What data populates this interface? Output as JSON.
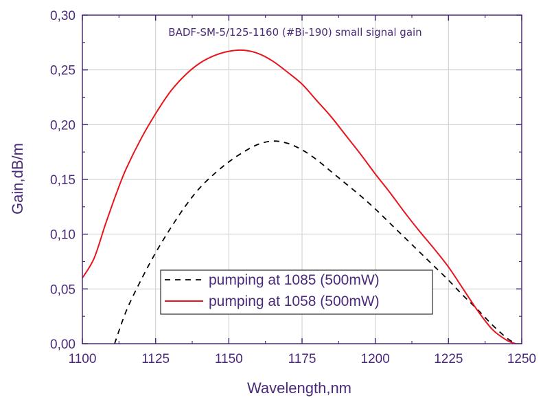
{
  "chart_data": {
    "type": "line",
    "title": "BADF-SM-5/125-1160  (#Bi-190) small signal gain",
    "xlabel": "Wavelength,nm",
    "ylabel": "Gain,dB/m",
    "xlim": [
      1100,
      1250
    ],
    "ylim": [
      0,
      0.3
    ],
    "x_ticks": [
      "1100",
      "1125",
      "1150",
      "1175",
      "1200",
      "1225",
      "1250"
    ],
    "y_ticks": [
      "0,00",
      "0,05",
      "0,10",
      "0,15",
      "0,20",
      "0,25",
      "0,30"
    ],
    "grid": true,
    "legend_position": "lower-left",
    "colors": {
      "axis": "#4b2a7a",
      "grid": "#cccccc"
    },
    "series": [
      {
        "name": "pumping at 1085 (500mW)",
        "color": "#000000",
        "dash": "dashed",
        "points": [
          [
            1111,
            0.0
          ],
          [
            1115,
            0.03
          ],
          [
            1120,
            0.058
          ],
          [
            1125,
            0.083
          ],
          [
            1130,
            0.105
          ],
          [
            1135,
            0.125
          ],
          [
            1140,
            0.142
          ],
          [
            1145,
            0.155
          ],
          [
            1150,
            0.166
          ],
          [
            1155,
            0.175
          ],
          [
            1160,
            0.182
          ],
          [
            1165,
            0.185
          ],
          [
            1170,
            0.183
          ],
          [
            1175,
            0.177
          ],
          [
            1180,
            0.168
          ],
          [
            1185,
            0.157
          ],
          [
            1190,
            0.146
          ],
          [
            1195,
            0.135
          ],
          [
            1200,
            0.123
          ],
          [
            1205,
            0.11
          ],
          [
            1210,
            0.097
          ],
          [
            1215,
            0.084
          ],
          [
            1220,
            0.071
          ],
          [
            1225,
            0.058
          ],
          [
            1230,
            0.044
          ],
          [
            1235,
            0.031
          ],
          [
            1240,
            0.017
          ],
          [
            1245,
            0.005
          ],
          [
            1248,
            0.0
          ]
        ]
      },
      {
        "name": "pumping at 1058 (500mW)",
        "color": "#e8141c",
        "dash": "solid",
        "points": [
          [
            1100,
            0.06
          ],
          [
            1104,
            0.078
          ],
          [
            1108,
            0.11
          ],
          [
            1112,
            0.14
          ],
          [
            1115,
            0.16
          ],
          [
            1120,
            0.187
          ],
          [
            1125,
            0.21
          ],
          [
            1130,
            0.23
          ],
          [
            1135,
            0.245
          ],
          [
            1140,
            0.256
          ],
          [
            1145,
            0.263
          ],
          [
            1150,
            0.267
          ],
          [
            1155,
            0.268
          ],
          [
            1160,
            0.265
          ],
          [
            1165,
            0.258
          ],
          [
            1170,
            0.248
          ],
          [
            1175,
            0.237
          ],
          [
            1180,
            0.222
          ],
          [
            1185,
            0.207
          ],
          [
            1190,
            0.19
          ],
          [
            1195,
            0.173
          ],
          [
            1200,
            0.155
          ],
          [
            1205,
            0.138
          ],
          [
            1210,
            0.12
          ],
          [
            1215,
            0.103
          ],
          [
            1220,
            0.087
          ],
          [
            1225,
            0.07
          ],
          [
            1230,
            0.05
          ],
          [
            1235,
            0.03
          ],
          [
            1240,
            0.013
          ],
          [
            1245,
            0.003
          ],
          [
            1248,
            0.0
          ]
        ]
      }
    ]
  }
}
